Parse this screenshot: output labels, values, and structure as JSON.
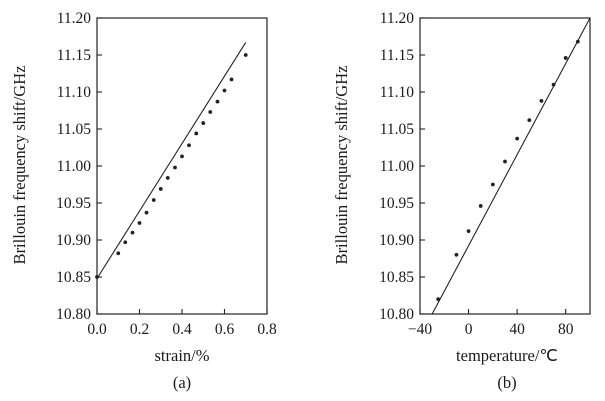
{
  "chart_data": [
    {
      "type": "scatter",
      "panel_label": "(a)",
      "xlabel": "strain/%",
      "ylabel": "Brillouin frequency shift/GHz",
      "xlim": [
        0.0,
        0.8
      ],
      "ylim": [
        10.8,
        11.2
      ],
      "xticks": [
        "0.0",
        "0.2",
        "0.4",
        "0.6",
        "0.8"
      ],
      "yticks": [
        "10.80",
        "10.85",
        "10.90",
        "10.95",
        "11.00",
        "11.05",
        "11.10",
        "11.15",
        "11.20"
      ],
      "points": {
        "x": [
          0.0,
          0.1,
          0.133,
          0.167,
          0.2,
          0.233,
          0.267,
          0.3,
          0.333,
          0.367,
          0.4,
          0.433,
          0.467,
          0.5,
          0.533,
          0.567,
          0.6,
          0.633,
          0.7
        ],
        "y": [
          10.85,
          10.882,
          10.897,
          10.91,
          10.923,
          10.937,
          10.954,
          10.969,
          10.984,
          10.998,
          11.013,
          11.028,
          11.044,
          11.058,
          11.073,
          11.087,
          11.102,
          11.117,
          11.15
        ]
      },
      "fit_line": {
        "x": [
          0.0,
          0.7
        ],
        "y": [
          10.848,
          11.167
        ]
      },
      "grid": false,
      "legend": "none"
    },
    {
      "type": "scatter",
      "panel_label": "(b)",
      "xlabel": "temperature/℃",
      "ylabel": "Brillouin frequency shift/GHz",
      "xlim": [
        -40,
        100
      ],
      "ylim": [
        10.8,
        11.2
      ],
      "xticks": [
        "−40",
        "0",
        "40",
        "80"
      ],
      "yticks": [
        "10.80",
        "10.85",
        "10.90",
        "10.95",
        "11.00",
        "11.05",
        "11.10",
        "11.15",
        "11.20"
      ],
      "points": {
        "x": [
          -25,
          -10,
          0,
          10,
          20,
          30,
          40,
          50,
          60,
          70,
          80,
          90
        ],
        "y": [
          10.82,
          10.88,
          10.912,
          10.946,
          10.975,
          11.006,
          11.037,
          11.062,
          11.088,
          11.11,
          11.146,
          11.168
        ]
      },
      "fit_line": {
        "x": [
          -30,
          100
        ],
        "y": [
          10.8,
          11.2
        ]
      },
      "grid": false,
      "legend": "none"
    }
  ]
}
